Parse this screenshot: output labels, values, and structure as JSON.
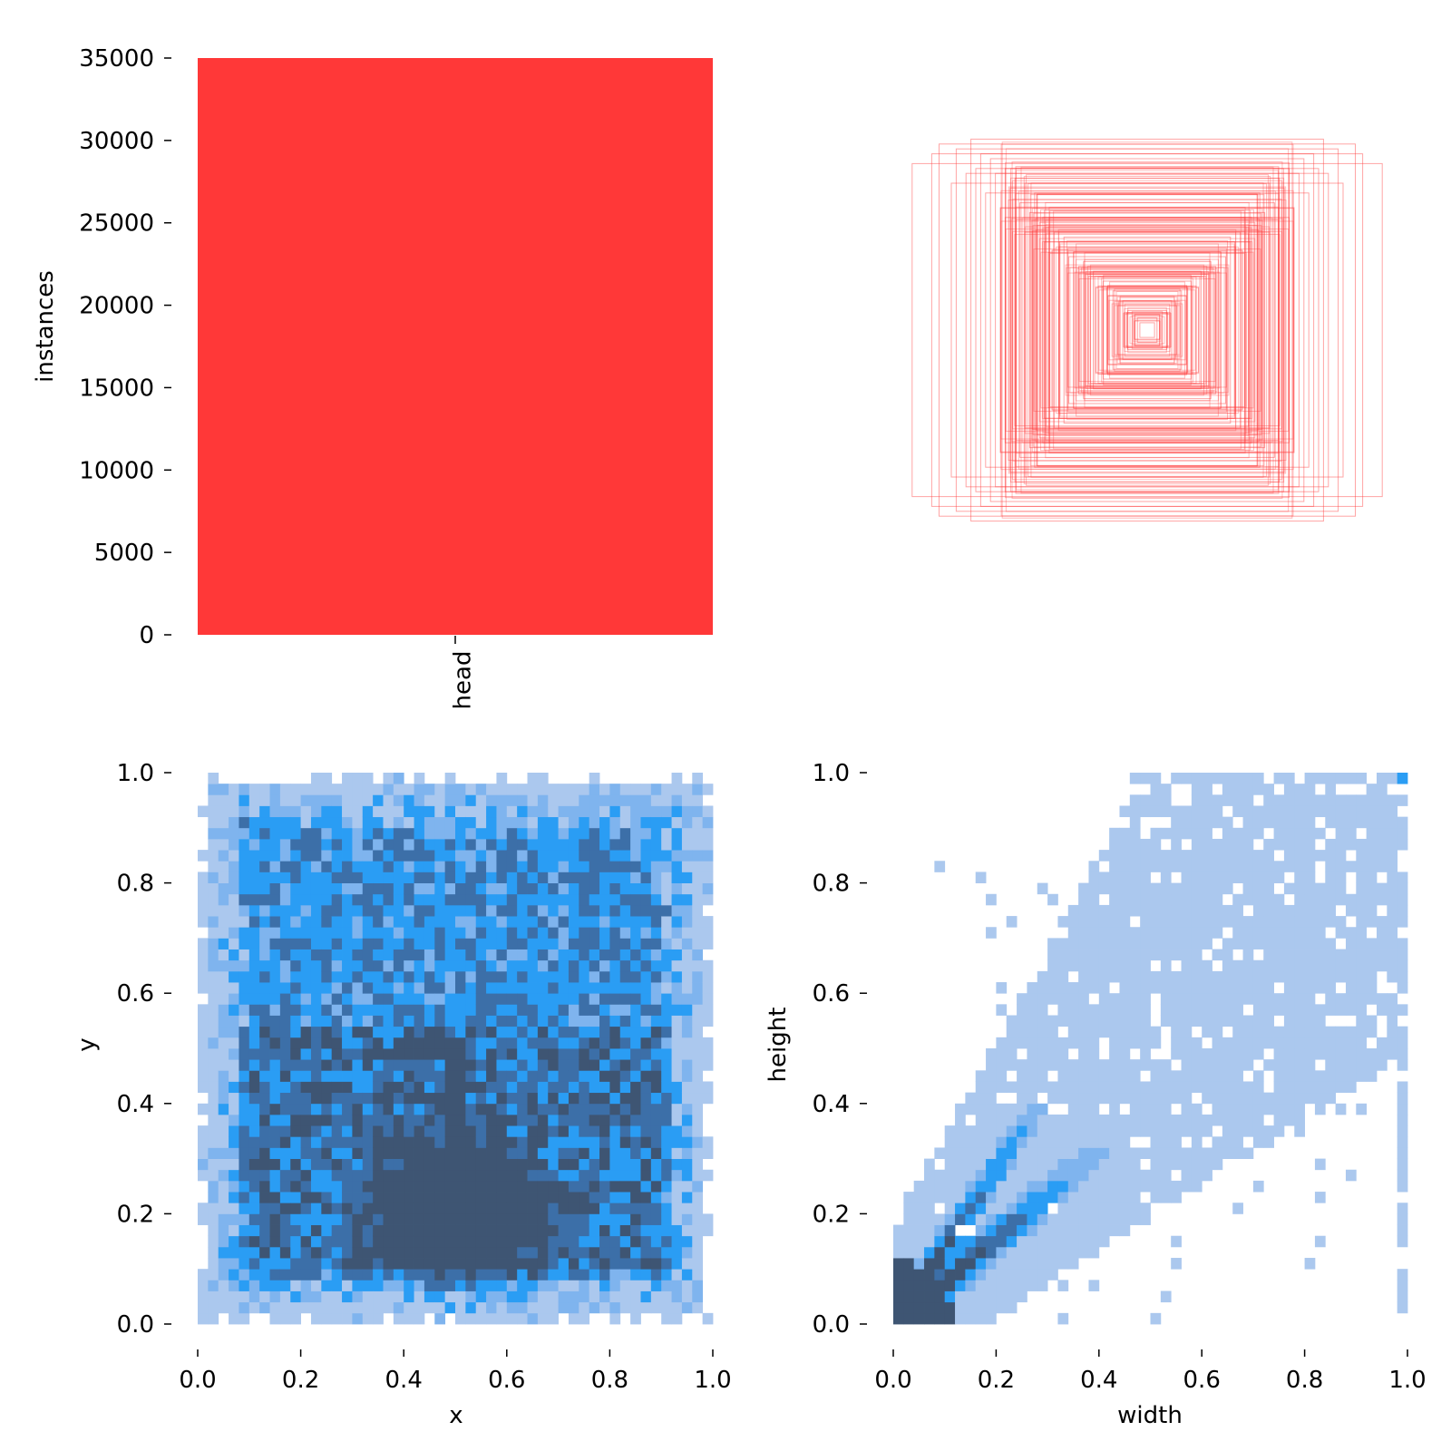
{
  "chart_data": [
    {
      "type": "bar",
      "panel": "top-left",
      "categories": [
        "head"
      ],
      "values": [
        35000
      ],
      "ylabel": "instances",
      "ylim": [
        0,
        35000
      ],
      "yticks": [
        "0",
        "5000",
        "10000",
        "15000",
        "20000",
        "25000",
        "30000",
        "35000"
      ],
      "color": "#ff3838",
      "grid": false
    },
    {
      "type": "box-overlay",
      "panel": "top-right",
      "description_note": "",
      "center": [
        0.5,
        0.5
      ],
      "box_sizes": [
        [
          0.96,
          0.68
        ],
        [
          0.85,
          0.76
        ],
        [
          0.72,
          0.78
        ],
        [
          0.68,
          0.72
        ],
        [
          0.8,
          0.6
        ],
        [
          0.62,
          0.64
        ],
        [
          0.56,
          0.58
        ],
        [
          0.66,
          0.56
        ],
        [
          0.52,
          0.52
        ],
        [
          0.58,
          0.46
        ],
        [
          0.48,
          0.48
        ],
        [
          0.5,
          0.4
        ],
        [
          0.44,
          0.44
        ],
        [
          0.4,
          0.46
        ],
        [
          0.42,
          0.36
        ],
        [
          0.38,
          0.4
        ],
        [
          0.36,
          0.34
        ],
        [
          0.34,
          0.38
        ],
        [
          0.32,
          0.3
        ],
        [
          0.3,
          0.32
        ],
        [
          0.28,
          0.26
        ],
        [
          0.26,
          0.28
        ],
        [
          0.24,
          0.22
        ],
        [
          0.22,
          0.24
        ],
        [
          0.2,
          0.18
        ],
        [
          0.18,
          0.2
        ],
        [
          0.16,
          0.14
        ],
        [
          0.14,
          0.16
        ],
        [
          0.12,
          0.1
        ],
        [
          0.1,
          0.12
        ],
        [
          0.08,
          0.08
        ],
        [
          0.06,
          0.06
        ],
        [
          0.05,
          0.04
        ],
        [
          0.04,
          0.05
        ],
        [
          0.03,
          0.03
        ],
        [
          0.7,
          0.66
        ],
        [
          0.64,
          0.7
        ],
        [
          0.6,
          0.5
        ],
        [
          0.54,
          0.62
        ],
        [
          0.46,
          0.56
        ],
        [
          0.78,
          0.74
        ],
        [
          0.74,
          0.64
        ],
        [
          0.88,
          0.72
        ],
        [
          0.58,
          0.66
        ],
        [
          0.5,
          0.6
        ]
      ],
      "color": "#ff3838"
    },
    {
      "type": "heatmap",
      "panel": "bottom-left",
      "xlabel": "x",
      "ylabel": "y",
      "xlim": [
        0,
        1
      ],
      "ylim": [
        0,
        1
      ],
      "xticks": [
        "0.0",
        "0.2",
        "0.4",
        "0.6",
        "0.8",
        "1.0"
      ],
      "yticks": [
        "0.0",
        "0.2",
        "0.4",
        "0.6",
        "0.8",
        "1.0"
      ],
      "bins": 50,
      "density_peak": [
        0.5,
        0.2
      ],
      "colors": [
        "#abc8ee",
        "#7fb4ee",
        "#2a9df4",
        "#3c6fa8",
        "#3e5573"
      ]
    },
    {
      "type": "heatmap",
      "panel": "bottom-right",
      "xlabel": "width",
      "ylabel": "height",
      "xlim": [
        0,
        1
      ],
      "ylim": [
        0,
        1
      ],
      "xticks": [
        "0.0",
        "0.2",
        "0.4",
        "0.6",
        "0.8",
        "1.0"
      ],
      "yticks": [
        "0.0",
        "0.2",
        "0.4",
        "0.6",
        "0.8",
        "1.0"
      ],
      "bins": 50,
      "density_peak": [
        0.05,
        0.05
      ],
      "colors": [
        "#abc8ee",
        "#7fb4ee",
        "#2a9df4",
        "#3c6fa8",
        "#3e5573"
      ]
    }
  ]
}
